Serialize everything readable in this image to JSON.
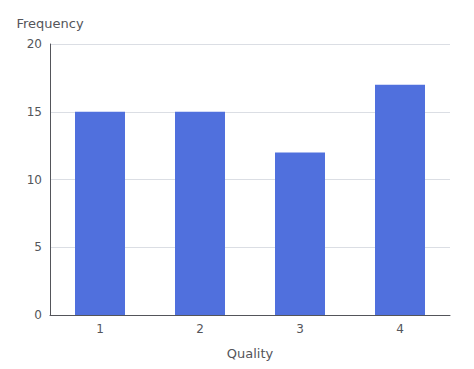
{
  "chart_data": {
    "type": "bar",
    "categories": [
      "1",
      "2",
      "3",
      "4"
    ],
    "values": [
      15,
      15,
      12,
      17
    ],
    "xlabel": "Quality",
    "ylabel": "Frequency",
    "ylim": [
      0,
      20
    ],
    "yticks": [
      0,
      5,
      10,
      15,
      20
    ],
    "grid": true
  }
}
